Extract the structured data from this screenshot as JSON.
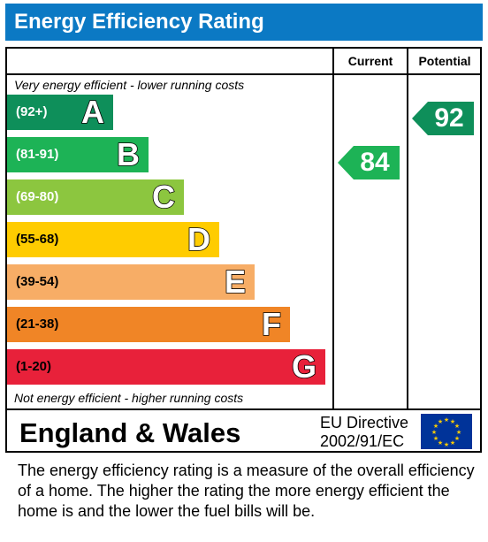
{
  "title": "Energy Efficiency Rating",
  "columns": {
    "current": "Current",
    "potential": "Potential"
  },
  "top_note": "Very energy efficient - lower running costs",
  "bottom_note": "Not energy efficient - higher running costs",
  "bands": [
    {
      "letter": "A",
      "range": "(92+)",
      "color": "#0e8f5a"
    },
    {
      "letter": "B",
      "range": "(81-91)",
      "color": "#1db356"
    },
    {
      "letter": "C",
      "range": "(69-80)",
      "color": "#8cc63f"
    },
    {
      "letter": "D",
      "range": "(55-68)",
      "color": "#ffcc00"
    },
    {
      "letter": "E",
      "range": "(39-54)",
      "color": "#f7ad66"
    },
    {
      "letter": "F",
      "range": "(21-38)",
      "color": "#f08526"
    },
    {
      "letter": "G",
      "range": "(1-20)",
      "color": "#e8213a"
    }
  ],
  "current": {
    "value": "84",
    "band": "B",
    "color": "#1db356"
  },
  "potential": {
    "value": "92",
    "band": "A",
    "color": "#0e8f5a"
  },
  "footer": {
    "region": "England & Wales",
    "directive_line1": "EU Directive",
    "directive_line2": "2002/91/EC"
  },
  "description": "The energy efficiency rating is a measure of the overall efficiency of a home.  The higher the rating the more energy efficient the home is and the lower the fuel bills will be."
}
